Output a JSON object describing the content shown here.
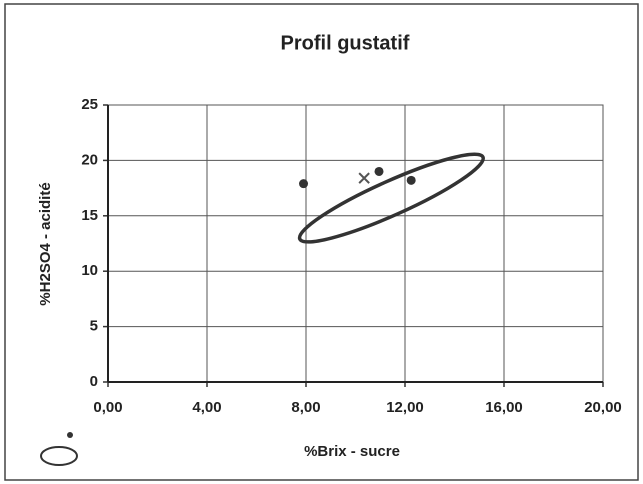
{
  "chart_data": {
    "type": "scatter",
    "title": "Profil gustatif",
    "x_label": "%Brix - sucre",
    "y_label": "%H2SO4 - acidité",
    "xlim": [
      0,
      20
    ],
    "xticks": [
      {
        "value": 0,
        "label": "0,00"
      },
      {
        "value": 4,
        "label": "4,00"
      },
      {
        "value": 8,
        "label": "8,00"
      },
      {
        "value": 12,
        "label": "12,00"
      },
      {
        "value": 16,
        "label": "16,00"
      },
      {
        "value": 20,
        "label": "20,00"
      }
    ],
    "ylim": [
      0,
      25
    ],
    "yticks": [
      0,
      5,
      10,
      15,
      20,
      25
    ],
    "grid": true,
    "series": [
      {
        "color": "#333333",
        "marker": "dot",
        "x": [
          7.9,
          10.95,
          12.25
        ],
        "values": [
          17.9,
          19.0,
          18.2
        ]
      },
      {
        "color": "#555555",
        "marker": "cross",
        "x": [
          10.35
        ],
        "values": [
          18.4
        ]
      }
    ],
    "ellipse": {
      "color": "#333333",
      "center": [
        11.45,
        16.6
      ],
      "major_end": [
        15.15,
        20.3
      ],
      "minor_end": [
        11.73,
        15.2
      ]
    }
  }
}
